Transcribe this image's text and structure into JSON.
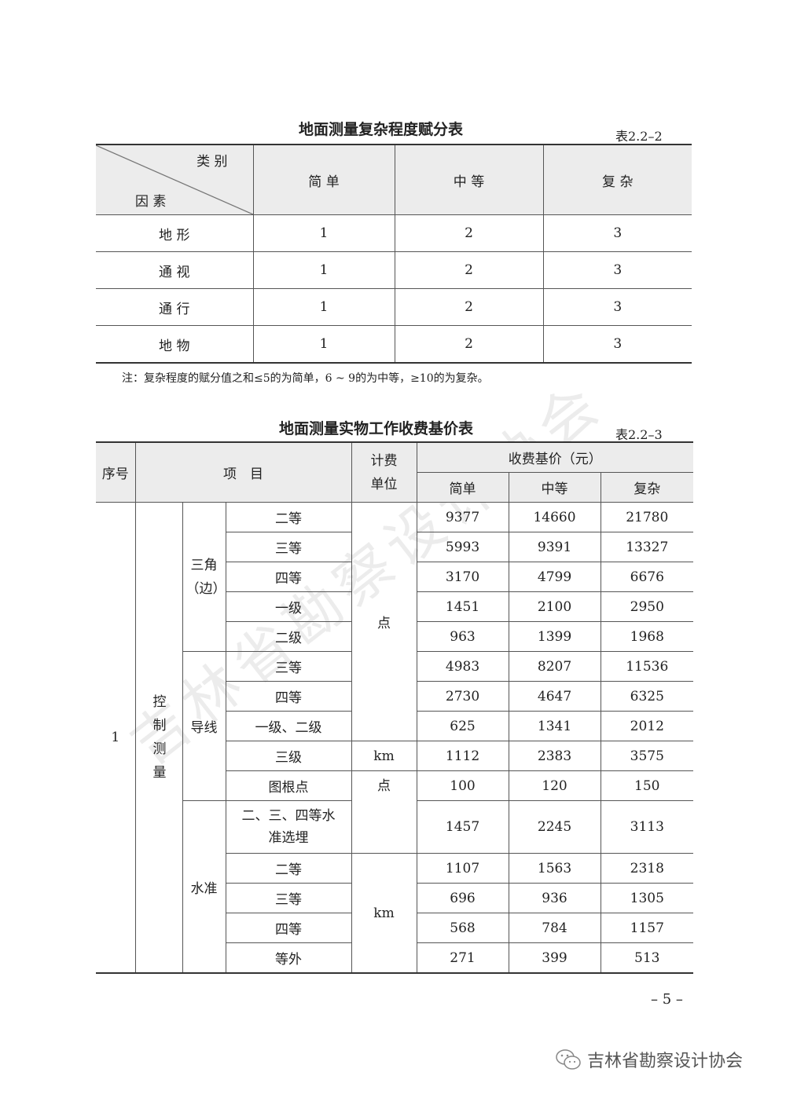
{
  "table1": {
    "title": "地面测量复杂程度赋分表",
    "number": "表2.2–2",
    "corner_top": "类 别",
    "corner_bottom": "因 素",
    "columns": [
      "简 单",
      "中 等",
      "复 杂"
    ],
    "rows": [
      [
        "地 形",
        "1",
        "2",
        "3"
      ],
      [
        "通 视",
        "1",
        "2",
        "3"
      ],
      [
        "通 行",
        "1",
        "2",
        "3"
      ],
      [
        "地 物",
        "1",
        "2",
        "3"
      ]
    ],
    "note": "注：复杂程度的赋分值之和≤5的为简单，6 ~ 9的为中等，≥10的为复杂。"
  },
  "table2": {
    "title": "地面测量实物工作收费基价表",
    "number": "表2.2–3",
    "headers": {
      "no": "序号",
      "item": "项　目",
      "unit": "计费\n单位",
      "price": "收费基价（元）",
      "simple": "简单",
      "medium": "中等",
      "complex": "复杂"
    },
    "no": "1",
    "category": "控制测量",
    "groups": [
      "三角（边）",
      "导线",
      "水准"
    ],
    "units": {
      "point": "点",
      "km": "km"
    },
    "rows": [
      [
        "二等",
        "9377",
        "14660",
        "21780"
      ],
      [
        "三等",
        "5993",
        "9391",
        "13327"
      ],
      [
        "四等",
        "3170",
        "4799",
        "6676"
      ],
      [
        "一级",
        "1451",
        "2100",
        "2950"
      ],
      [
        "二级",
        "963",
        "1399",
        "1968"
      ],
      [
        "三等",
        "4983",
        "8207",
        "11536"
      ],
      [
        "四等",
        "2730",
        "4647",
        "6325"
      ],
      [
        "一级、二级",
        "625",
        "1341",
        "2012"
      ],
      [
        "三级",
        "1112",
        "2383",
        "3575"
      ],
      [
        "图根点",
        "100",
        "120",
        "150"
      ],
      [
        "二、三、四等水准选埋",
        "1457",
        "2245",
        "3113"
      ],
      [
        "二等",
        "1107",
        "1563",
        "2318"
      ],
      [
        "三等",
        "696",
        "936",
        "1305"
      ],
      [
        "四等",
        "568",
        "784",
        "1157"
      ],
      [
        "等外",
        "271",
        "399",
        "513"
      ]
    ]
  },
  "page_number": "– 5 –",
  "watermark": "吉林省勘察设计协会",
  "brand": {
    "name": "吉林省勘察设计协会",
    "icon": "wechat-icon"
  }
}
